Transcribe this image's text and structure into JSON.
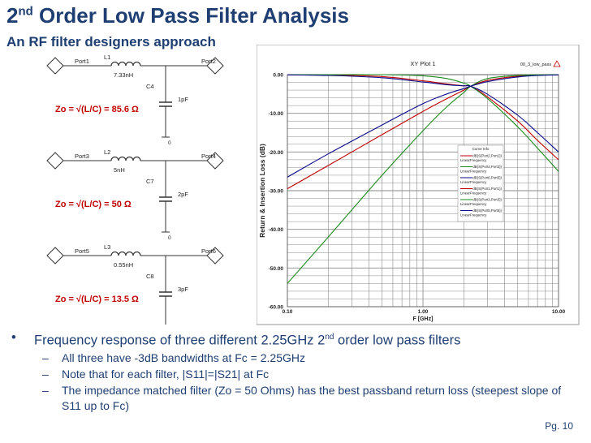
{
  "slide": {
    "title_main": "2",
    "title_sup": "nd",
    "title_rest": " Order Low Pass Filter Analysis",
    "subtitle": "An RF filter designers approach",
    "page_number": "Pg. 10"
  },
  "circuits": [
    {
      "port_in": "Port1",
      "port_out": "Port2",
      "inductor_name": "L1",
      "inductor_value": "7.33nH",
      "cap_name": "C4",
      "cap_value": "1pF",
      "ground": "0",
      "zo_text": "Zo = √(L/C) = 85.6 Ω"
    },
    {
      "port_in": "Port3",
      "port_out": "Port4",
      "inductor_name": "L2",
      "inductor_value": "5nH",
      "cap_name": "C7",
      "cap_value": "2pF",
      "ground": "0",
      "zo_text": "Zo = √(L/C) = 50 Ω"
    },
    {
      "port_in": "Port5",
      "port_out": "Port6",
      "inductor_name": "L3",
      "inductor_value": "0.55nH",
      "cap_name": "C8",
      "cap_value": "3pF",
      "ground": "0",
      "zo_text": "Zo = √(L/C) = 13.5 Ω"
    }
  ],
  "colors": {
    "red": "#c00000",
    "blue": "#0a0a8c",
    "green": "#1e8c1e",
    "grid": "#8a8a8a",
    "title": "#1f3f72"
  },
  "chart_data": {
    "type": "line",
    "title": "XY Plot 1",
    "tag": "00_3_low_pass",
    "xlabel": "F [GHz]",
    "ylabel": "Return & Insertion Loss (dB)",
    "x_scale": "log",
    "xlim": [
      0.1,
      10
    ],
    "ylim": [
      -60,
      0
    ],
    "x_ticks": [
      {
        "v": 0.1,
        "label": "0.10"
      },
      {
        "v": 1,
        "label": "1.00"
      },
      {
        "v": 10,
        "label": "10.00"
      }
    ],
    "y_ticks": [
      {
        "v": 0,
        "label": "0.00"
      },
      {
        "v": -10,
        "label": "-10.00"
      },
      {
        "v": -20,
        "label": "-20.00"
      },
      {
        "v": -30,
        "label": "-30.00"
      },
      {
        "v": -40,
        "label": "-40.00"
      },
      {
        "v": -50,
        "label": "-50.00"
      },
      {
        "v": -60,
        "label": "-60.00"
      }
    ],
    "grid": true,
    "legend_placement": "right",
    "legend_title": "Curve Info",
    "series": [
      {
        "name": "dB(S(Port2,Port1))",
        "sub": "LinearFrequency",
        "color": "#c00000",
        "x": [
          0.1,
          0.2,
          0.5,
          1,
          1.5,
          2,
          2.25,
          3,
          5,
          7,
          10
        ],
        "y": [
          -0.03,
          -0.1,
          -0.5,
          -1.6,
          -2.4,
          -2.9,
          -3.0,
          -5.8,
          -12,
          -17,
          -22
        ]
      },
      {
        "name": "dB(S(Port4,Port3))",
        "sub": "LinearFrequency",
        "color": "#1e8c1e",
        "x": [
          0.1,
          0.2,
          0.5,
          1,
          1.5,
          2,
          2.25,
          3,
          5,
          7,
          10
        ],
        "y": [
          -0.001,
          -0.002,
          -0.01,
          -0.3,
          -1.0,
          -2.2,
          -3.0,
          -6.2,
          -13.5,
          -19,
          -25
        ]
      },
      {
        "name": "dB(S(Port6,Port5))",
        "sub": "LinearFrequency",
        "color": "#0a0a8c",
        "x": [
          0.1,
          0.2,
          0.5,
          1,
          1.5,
          2,
          2.25,
          3,
          5,
          7,
          10
        ],
        "y": [
          -0.05,
          -0.2,
          -0.8,
          -1.9,
          -2.6,
          -2.9,
          -3.0,
          -5.1,
          -10.5,
          -15,
          -20
        ]
      },
      {
        "name": "dB(S(Port1,Port1))",
        "sub": "LinearFrequency",
        "color": "#c00000",
        "x": [
          0.1,
          0.2,
          0.5,
          1,
          1.5,
          2,
          2.25,
          3,
          5,
          7,
          10
        ],
        "y": [
          -29.5,
          -23.5,
          -15.5,
          -9.5,
          -6.2,
          -4.0,
          -3.0,
          -1.5,
          -0.4,
          -0.12,
          -0.03
        ]
      },
      {
        "name": "dB(S(Port3,Port3))",
        "sub": "LinearFrequency",
        "color": "#1e8c1e",
        "x": [
          0.1,
          0.2,
          0.5,
          1,
          1.5,
          2,
          2.25,
          3,
          5,
          7,
          10
        ],
        "y": [
          -54,
          -42,
          -26,
          -14.5,
          -8.3,
          -4.6,
          -3.0,
          -1.0,
          -0.2,
          -0.06,
          -0.01
        ]
      },
      {
        "name": "dB(S(Port5,Port5))",
        "sub": "LinearFrequency",
        "color": "#0a0a8c",
        "x": [
          0.1,
          0.2,
          0.5,
          1,
          1.5,
          2,
          2.25,
          3,
          5,
          7,
          10
        ],
        "y": [
          -26.5,
          -20.5,
          -13.0,
          -7.5,
          -5.0,
          -3.6,
          -3.0,
          -1.8,
          -0.6,
          -0.2,
          -0.05
        ]
      }
    ]
  },
  "bullets": {
    "main_pre": "Frequency response of three different 2.25GHz 2",
    "main_sup": "nd",
    "main_post": " order low pass filters",
    "subs": [
      "All three have -3dB bandwidths at Fc = 2.25GHz",
      "Note that for each filter, |S11|=|S21| at Fc",
      "The impedance matched filter (Zo = 50 Ohms) has the best passband return loss (steepest slope of S11 up to Fc)"
    ]
  }
}
